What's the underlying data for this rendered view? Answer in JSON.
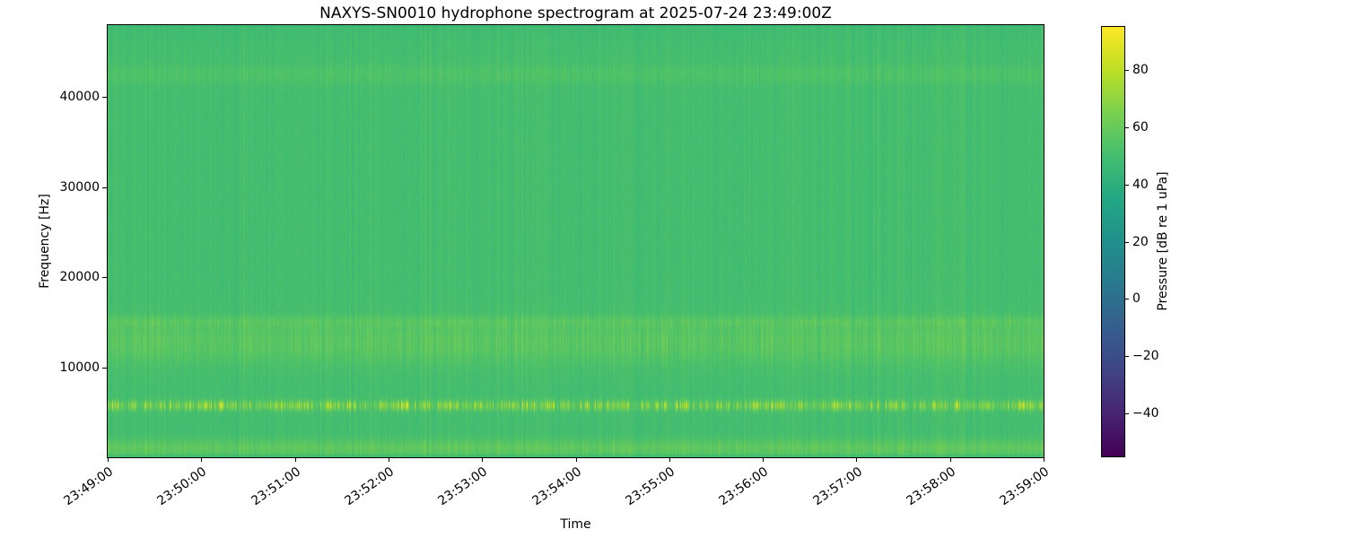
{
  "figure": {
    "title": "NAXYS-SN0010 hydrophone spectrogram at 2025-07-24 23:49:00Z",
    "xlabel": "Time",
    "ylabel": "Frequency [Hz]",
    "colorbar_label": "Pressure [dB re 1 uPa]"
  },
  "chart_data": {
    "type": "heatmap",
    "subtype": "spectrogram",
    "title": "NAXYS-SN0010 hydrophone spectrogram at 2025-07-24 23:49:00Z",
    "xlabel": "Time",
    "ylabel": "Frequency [Hz]",
    "colormap": "viridis",
    "x_tick_labels": [
      "23:49:00",
      "23:50:00",
      "23:51:00",
      "23:52:00",
      "23:53:00",
      "23:54:00",
      "23:55:00",
      "23:56:00",
      "23:57:00",
      "23:58:00",
      "23:59:00"
    ],
    "x_range": {
      "start": "23:49:00",
      "end": "23:59:00",
      "duration_seconds": 600
    },
    "y_tick_values_hz": [
      10000,
      20000,
      30000,
      40000
    ],
    "y_tick_labels": [
      "10000",
      "20000",
      "30000",
      "40000"
    ],
    "ylim_hz": [
      0,
      48000
    ],
    "colorbar": {
      "label": "Pressure [dB re 1 uPa]",
      "tick_values_db": [
        80,
        60,
        40,
        20,
        0,
        -20,
        -40
      ],
      "tick_labels": [
        "80",
        "60",
        "40",
        "20",
        "0",
        "−20",
        "−40"
      ],
      "vmin_db": -55,
      "vmax_db": 95
    },
    "background_level_db": 50,
    "vertical_striping_db": 2,
    "features": [
      {
        "name": "tonal-burst-band",
        "center_hz": 5800,
        "halfwidth_hz": 380,
        "peak_boost_db": 24,
        "burstiness": 0.85,
        "description": "bright intermittent tonal bursts near 5.8 kHz"
      },
      {
        "name": "broad-mid-band",
        "center_hz": 12800,
        "halfwidth_hz": 1700,
        "peak_boost_db": 9,
        "burstiness": 0.45,
        "description": "elevated broadband energy ~11-15 kHz"
      },
      {
        "name": "upper-mid-line",
        "center_hz": 15100,
        "halfwidth_hz": 420,
        "peak_boost_db": 6,
        "burstiness": 0.5,
        "description": "narrow elevated line near 15 kHz"
      },
      {
        "name": "low-frequency-band",
        "center_hz": 1100,
        "halfwidth_hz": 650,
        "peak_boost_db": 10,
        "burstiness": 0.3,
        "description": "elevated band near 1 kHz along bottom edge"
      },
      {
        "name": "faint-high-band",
        "center_hz": 42600,
        "halfwidth_hz": 800,
        "peak_boost_db": 4,
        "burstiness": 0.25,
        "description": "faint elevated band near 42.5 kHz"
      }
    ]
  }
}
